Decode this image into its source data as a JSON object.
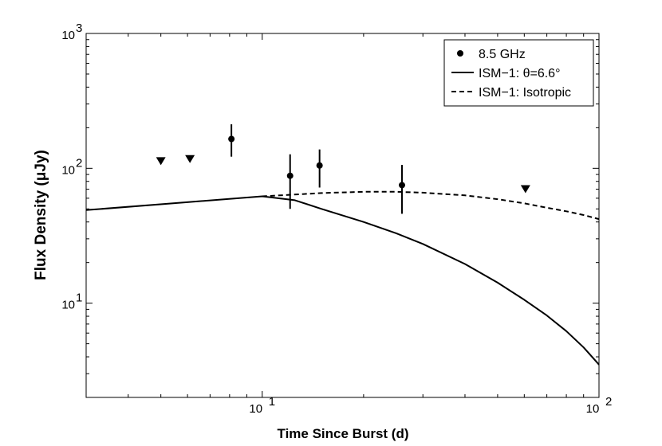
{
  "chart_data": {
    "type": "scatter",
    "title": "",
    "xlabel": "Time Since Burst (d)",
    "ylabel": "Flux Density (μJy)",
    "xscale": "log",
    "yscale": "log",
    "xlim": [
      3.0,
      100
    ],
    "ylim": [
      2.0,
      1000
    ],
    "grid": false,
    "legend_position": "top-right",
    "x_ticks": [
      {
        "value": 10,
        "base": "10",
        "exp": "1"
      },
      {
        "value": 100,
        "base": "10",
        "exp": "2"
      }
    ],
    "y_ticks": [
      {
        "value": 10,
        "base": "10",
        "exp": "1"
      },
      {
        "value": 100,
        "base": "10",
        "exp": "2"
      },
      {
        "value": 1000,
        "base": "10",
        "exp": "3"
      }
    ],
    "legend": [
      {
        "label": "8.5 GHz",
        "marker": "dot"
      },
      {
        "label": "ISM−1: θ=6.6°",
        "line": "solid"
      },
      {
        "label": "ISM−1: Isotropic",
        "line": "dashed"
      }
    ],
    "series": [
      {
        "name": "8.5 GHz",
        "kind": "points",
        "points": [
          {
            "x": 8.1,
            "y": 165,
            "yerr_low": 122,
            "yerr_high": 212
          },
          {
            "x": 12.1,
            "y": 88,
            "yerr_low": 50,
            "yerr_high": 127
          },
          {
            "x": 14.8,
            "y": 105,
            "yerr_low": 72,
            "yerr_high": 138
          },
          {
            "x": 26.0,
            "y": 75,
            "yerr_low": 46,
            "yerr_high": 106
          }
        ]
      },
      {
        "name": "8.5 GHz upper limits",
        "kind": "upper_limits",
        "points": [
          {
            "x": 5.0,
            "y": 113
          },
          {
            "x": 6.1,
            "y": 117
          },
          {
            "x": 60.5,
            "y": 70
          }
        ]
      },
      {
        "name": "ISM−1: θ=6.6°",
        "kind": "line",
        "style": "solid",
        "x": [
          3.0,
          10.0,
          12.5,
          15,
          20,
          25,
          30,
          40,
          50,
          60,
          70,
          80,
          90,
          100
        ],
        "y": [
          49,
          62,
          58,
          50,
          40,
          33,
          27.5,
          19.5,
          14.2,
          10.6,
          8.1,
          6.2,
          4.7,
          3.5
        ]
      },
      {
        "name": "ISM−1: Isotropic",
        "kind": "line",
        "style": "dashed",
        "x": [
          10.0,
          15,
          20,
          25,
          30,
          40,
          50,
          60,
          70,
          80,
          90,
          100
        ],
        "y": [
          62,
          65.5,
          67,
          67,
          66,
          63,
          59,
          55,
          51,
          48,
          45,
          42
        ]
      }
    ]
  }
}
